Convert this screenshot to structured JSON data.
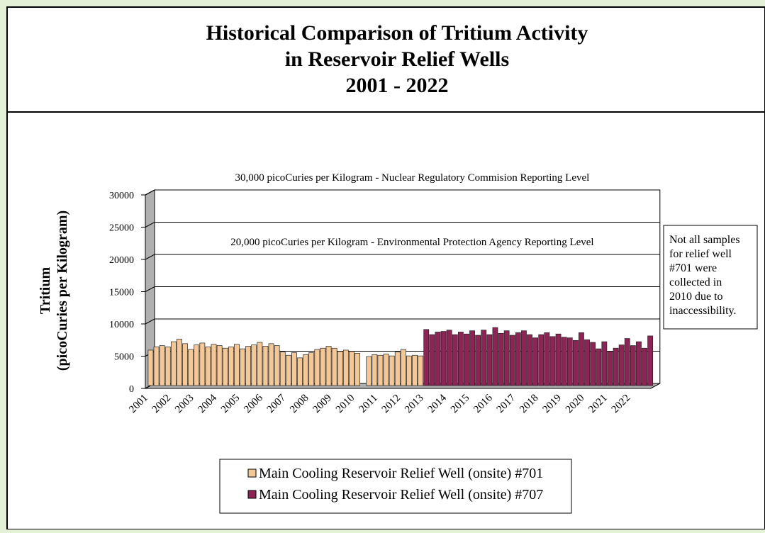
{
  "chart_data": {
    "type": "bar",
    "title": [
      "Historical Comparison of Tritium Activity",
      "in Reservoir Relief Wells",
      "2001 - 2022"
    ],
    "ylabel": [
      "Tritium",
      "(picoCuries per Kilogram)"
    ],
    "annotations": [
      {
        "text": "30,000 picoCuries per Kilogram - Nuclear Regulatory Commision Reporting Level",
        "value": 30000
      },
      {
        "text": "20,000 picoCuries per Kilogram - Environmental Protection Agency Reporting Level",
        "value": 20000
      }
    ],
    "note": [
      "Not all samples",
      " for  relief well",
      "#701 were",
      "collected in",
      "2010 due to",
      "inaccessibility."
    ],
    "categories": [
      "2001",
      null,
      null,
      null,
      "2002",
      null,
      null,
      null,
      "2003",
      null,
      null,
      null,
      "2004",
      null,
      null,
      null,
      "2005",
      null,
      null,
      null,
      "2006",
      null,
      null,
      null,
      "2007",
      null,
      null,
      null,
      "2008",
      null,
      null,
      null,
      "2009",
      null,
      null,
      null,
      "2010",
      null,
      null,
      null,
      "2011",
      null,
      null,
      null,
      "2012",
      null,
      null,
      null,
      "2013",
      null,
      null,
      null,
      "2014",
      null,
      null,
      null,
      "2015",
      null,
      null,
      null,
      "2016",
      null,
      null,
      null,
      "2017",
      null,
      null,
      null,
      "2018",
      null,
      null,
      null,
      "2019",
      null,
      null,
      null,
      "2020",
      null,
      null,
      null,
      "2021",
      null,
      null,
      null,
      "2022",
      null,
      null,
      null
    ],
    "series": [
      {
        "name": "Main Cooling Reservoir Relief Well (onsite) #701",
        "color": "#f3c796",
        "values": [
          5500,
          6000,
          6200,
          6000,
          6800,
          7200,
          6500,
          5600,
          6300,
          6600,
          6000,
          6400,
          6200,
          5800,
          6000,
          6400,
          5700,
          6100,
          6300,
          6700,
          6100,
          6500,
          6200,
          5200,
          4700,
          5100,
          4300,
          4800,
          5100,
          5600,
          5800,
          6100,
          5800,
          5300,
          5500,
          5300,
          5000,
          null,
          4500,
          4800,
          4700,
          4900,
          4600,
          5200,
          5600,
          4600,
          4700,
          4600,
          null,
          null,
          null,
          null,
          null,
          null,
          null,
          null,
          null,
          null,
          null,
          null,
          null,
          null,
          null,
          null,
          null,
          null,
          null,
          null,
          null,
          null,
          null,
          null,
          null,
          null,
          null,
          null,
          null,
          null,
          null,
          null,
          null,
          null,
          null,
          null,
          null,
          null,
          null,
          null
        ]
      },
      {
        "name": "Main Cooling Reservoir Relief Well (onsite) #707",
        "color": "#8e2456",
        "values": [
          null,
          null,
          null,
          null,
          null,
          null,
          null,
          null,
          null,
          null,
          null,
          null,
          null,
          null,
          null,
          null,
          null,
          null,
          null,
          null,
          null,
          null,
          null,
          null,
          null,
          null,
          null,
          null,
          null,
          null,
          null,
          null,
          null,
          null,
          null,
          null,
          null,
          null,
          null,
          null,
          null,
          null,
          null,
          null,
          null,
          null,
          null,
          null,
          8700,
          7900,
          8300,
          8400,
          8600,
          7900,
          8300,
          8000,
          8500,
          7800,
          8600,
          7900,
          9000,
          8100,
          8500,
          7800,
          8200,
          8500,
          7900,
          7400,
          7900,
          8200,
          7600,
          8000,
          7500,
          7400,
          7000,
          8200,
          7100,
          6700,
          5700,
          6800,
          5300,
          5800,
          6300,
          7300,
          6200,
          6800,
          5800,
          7700
        ]
      }
    ],
    "ylim": [
      0,
      30000
    ],
    "yticks": [
      0,
      5000,
      10000,
      15000,
      20000,
      25000,
      30000
    ],
    "grid": true
  }
}
